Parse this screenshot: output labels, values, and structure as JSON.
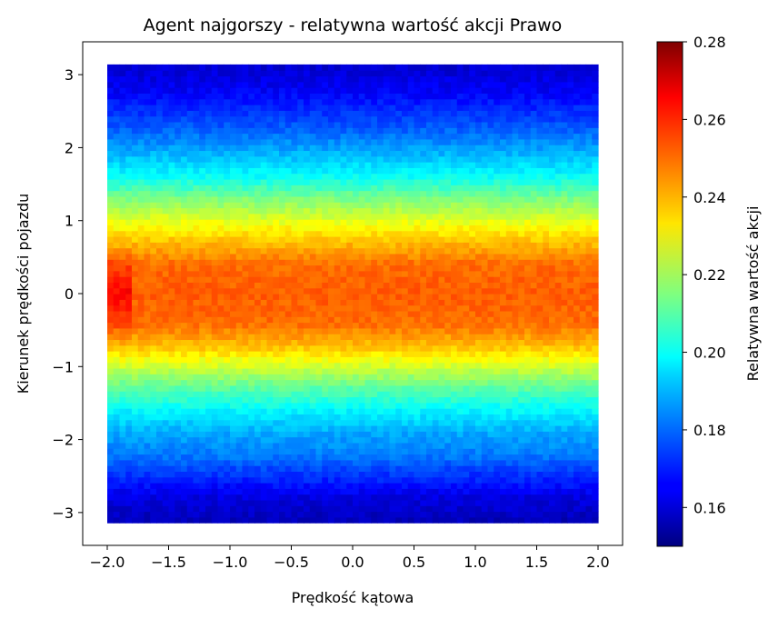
{
  "chart_data": {
    "type": "heatmap",
    "title": "Agent najgorszy - relatywna wartość akcji Prawo",
    "xlabel": "Prędkość kątowa",
    "ylabel": "Kierunek prędkości pojazdu",
    "xlim": [
      -2.2,
      2.2
    ],
    "ylim": [
      -3.45,
      3.45
    ],
    "data_extent": {
      "x": [
        -2.0,
        2.0
      ],
      "y": [
        -3.14,
        3.14
      ]
    },
    "x_ticks": [
      -2.0,
      -1.5,
      -1.0,
      -0.5,
      0.0,
      0.5,
      1.0,
      1.5,
      2.0
    ],
    "x_tick_labels": [
      "−2.0",
      "−1.5",
      "−1.0",
      "−0.5",
      "0.0",
      "0.5",
      "1.0",
      "1.5",
      "2.0"
    ],
    "y_ticks": [
      -3,
      -2,
      -1,
      0,
      1,
      2,
      3
    ],
    "y_tick_labels": [
      "−3",
      "−2",
      "−1",
      "0",
      "1",
      "2",
      "3"
    ],
    "colormap": "jet",
    "colorbar": {
      "label": "Relatywna wartość akcji",
      "range": [
        0.15,
        0.28
      ],
      "ticks": [
        0.16,
        0.18,
        0.2,
        0.22,
        0.24,
        0.26,
        0.28
      ],
      "tick_labels": [
        "0.16",
        "0.18",
        "0.20",
        "0.22",
        "0.24",
        "0.26",
        "0.28"
      ]
    },
    "value_profile_by_y": {
      "y": [
        -3.14,
        -2.8,
        -2.5,
        -2.2,
        -1.9,
        -1.6,
        -1.3,
        -1.0,
        -0.7,
        -0.4,
        0.0,
        0.4,
        0.7,
        1.0,
        1.3,
        1.6,
        1.9,
        2.2,
        2.5,
        2.8,
        3.14
      ],
      "value": [
        0.157,
        0.162,
        0.172,
        0.182,
        0.188,
        0.198,
        0.21,
        0.225,
        0.24,
        0.25,
        0.252,
        0.25,
        0.24,
        0.228,
        0.215,
        0.2,
        0.19,
        0.18,
        0.172,
        0.165,
        0.16
      ]
    },
    "grid": false,
    "legend": "none"
  }
}
